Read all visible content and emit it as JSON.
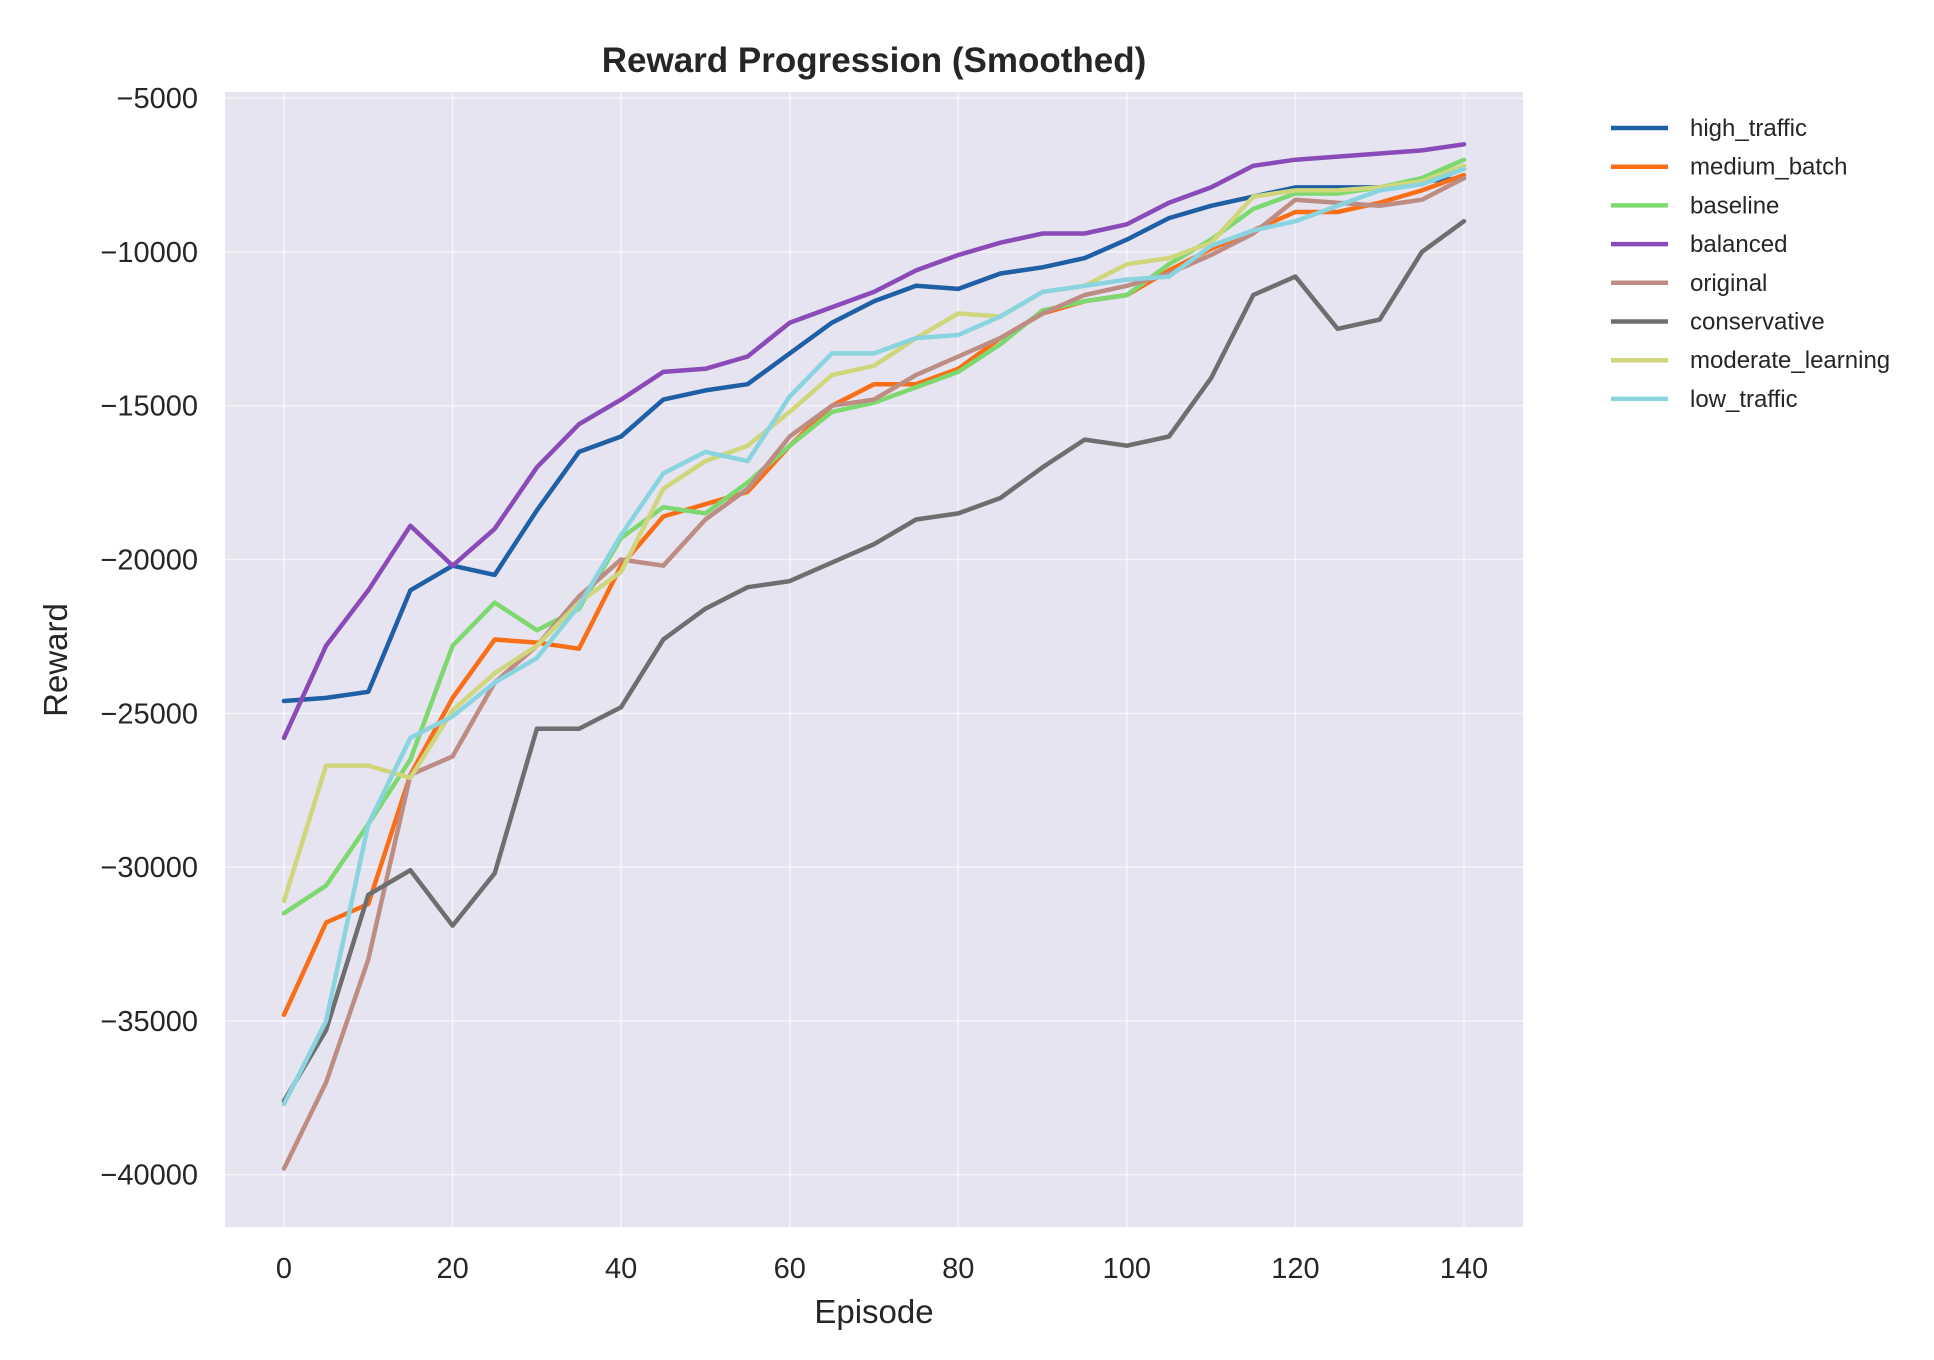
{
  "chart_data": {
    "type": "line",
    "title": "Reward Progression (Smoothed)",
    "xlabel": "Episode",
    "ylabel": "Reward",
    "xlim": [
      -7,
      147
    ],
    "ylim": [
      -41700,
      -4800
    ],
    "x_ticks": [
      0,
      20,
      40,
      60,
      80,
      100,
      120,
      140
    ],
    "y_ticks": [
      -40000,
      -35000,
      -30000,
      -25000,
      -20000,
      -15000,
      -10000,
      -5000
    ],
    "x_tick_labels": [
      "0",
      "20",
      "40",
      "60",
      "80",
      "100",
      "120",
      "140"
    ],
    "y_tick_labels": [
      "−40000",
      "−35000",
      "−30000",
      "−25000",
      "−20000",
      "−15000",
      "−10000",
      "−5000"
    ],
    "grid": true,
    "legend": "outside-top-right",
    "x": [
      0,
      5,
      10,
      15,
      20,
      25,
      30,
      35,
      40,
      45,
      50,
      55,
      60,
      65,
      70,
      75,
      80,
      85,
      90,
      95,
      100,
      105,
      110,
      115,
      120,
      125,
      130,
      135,
      140
    ],
    "series": [
      {
        "name": "high_traffic",
        "color": "#1f5fa6",
        "values": [
          -24600,
          -24500,
          -24300,
          -21000,
          -20200,
          -20500,
          -18400,
          -16500,
          -16000,
          -14800,
          -14500,
          -14300,
          -13300,
          -12300,
          -11600,
          -11100,
          -11200,
          -10700,
          -10500,
          -10200,
          -9600,
          -8900,
          -8500,
          -8200,
          -7900,
          -7900,
          -7900,
          -7700,
          -7600
        ]
      },
      {
        "name": "medium_batch",
        "color": "#f96e17",
        "values": [
          -34800,
          -31800,
          -31200,
          -27000,
          -24500,
          -22600,
          -22700,
          -22900,
          -20200,
          -18600,
          -18200,
          -17800,
          -16300,
          -15000,
          -14300,
          -14300,
          -13800,
          -12800,
          -12000,
          -11600,
          -11400,
          -10600,
          -9900,
          -9300,
          -8700,
          -8700,
          -8400,
          -8000,
          -7500
        ]
      },
      {
        "name": "baseline",
        "color": "#7dd96f",
        "values": [
          -31500,
          -30600,
          -28600,
          -26500,
          -22800,
          -21400,
          -22300,
          -21600,
          -19300,
          -18300,
          -18500,
          -17500,
          -16300,
          -15200,
          -14900,
          -14400,
          -13900,
          -13000,
          -11900,
          -11600,
          -11400,
          -10400,
          -9600,
          -8600,
          -8100,
          -8100,
          -7900,
          -7600,
          -7000
        ]
      },
      {
        "name": "balanced",
        "color": "#8a4ab8",
        "values": [
          -25800,
          -22800,
          -21000,
          -18900,
          -20200,
          -19000,
          -17000,
          -15600,
          -14800,
          -13900,
          -13800,
          -13400,
          -12300,
          -11800,
          -11300,
          -10600,
          -10100,
          -9700,
          -9400,
          -9400,
          -9100,
          -8400,
          -7900,
          -7200,
          -7000,
          -6900,
          -6800,
          -6700,
          -6500
        ]
      },
      {
        "name": "original",
        "color": "#bd8c82",
        "values": [
          -39800,
          -37000,
          -33000,
          -27000,
          -26400,
          -24000,
          -22800,
          -21200,
          -20000,
          -20200,
          -18700,
          -17700,
          -16000,
          -15000,
          -14800,
          -14000,
          -13400,
          -12800,
          -12000,
          -11400,
          -11100,
          -10700,
          -10100,
          -9400,
          -8300,
          -8400,
          -8500,
          -8300,
          -7600
        ]
      },
      {
        "name": "conservative",
        "color": "#6e6e6e",
        "values": [
          -37600,
          -35300,
          -30900,
          -30100,
          -31900,
          -30200,
          -25500,
          -25500,
          -24800,
          -22600,
          -21600,
          -20900,
          -20700,
          -20100,
          -19500,
          -18700,
          -18500,
          -18000,
          -17000,
          -16100,
          -16300,
          -16000,
          -14100,
          -11400,
          -10800,
          -12500,
          -12200,
          -10000,
          -9000
        ]
      },
      {
        "name": "moderate_learning",
        "color": "#d0d67c",
        "values": [
          -31100,
          -26700,
          -26700,
          -27100,
          -24900,
          -23700,
          -22800,
          -21400,
          -20400,
          -17700,
          -16800,
          -16300,
          -15200,
          -14000,
          -13700,
          -12800,
          -12000,
          -12100,
          -11300,
          -11100,
          -10400,
          -10200,
          -9700,
          -8200,
          -8000,
          -8000,
          -7900,
          -7700,
          -7200
        ]
      },
      {
        "name": "low_traffic",
        "color": "#8ad4e0",
        "values": [
          -37700,
          -35000,
          -28600,
          -25800,
          -25100,
          -24000,
          -23200,
          -21500,
          -19200,
          -17200,
          -16500,
          -16800,
          -14700,
          -13300,
          -13300,
          -12800,
          -12700,
          -12100,
          -11300,
          -11100,
          -10900,
          -10800,
          -9800,
          -9300,
          -9000,
          -8500,
          -8000,
          -7800,
          -7300
        ]
      }
    ]
  }
}
